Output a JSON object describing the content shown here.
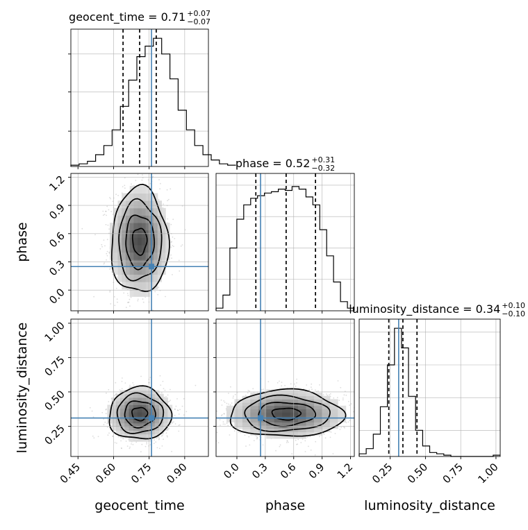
{
  "chart_data": {
    "type": "corner",
    "parameters": [
      "geocent_time",
      "phase",
      "luminosity_distance"
    ],
    "truths": {
      "geocent_time": 0.76,
      "phase": 0.25,
      "luminosity_distance": 0.31
    },
    "titles": [
      {
        "param": "geocent_time",
        "text": "geocent_time = 0.71",
        "sup": "+0.07",
        "sub": "−0.07",
        "median": 0.71,
        "q16": 0.64,
        "q84": 0.78
      },
      {
        "param": "phase",
        "text": "phase = 0.52",
        "sup": "+0.31",
        "sub": "−0.32",
        "median": 0.52,
        "q16": 0.2,
        "q84": 0.83
      },
      {
        "param": "luminosity_distance",
        "text": "luminosity_distance = 0.34",
        "sup": "+0.10",
        "sub": "−0.10",
        "median": 0.34,
        "q16": 0.24,
        "q84": 0.44
      }
    ],
    "axis_labels": {
      "geocent_time": "geocent_time",
      "phase": "phase",
      "luminosity_distance": "luminosity_distance"
    },
    "ranges": {
      "geocent_time": [
        0.42,
        1.0
      ],
      "phase": [
        -0.22,
        1.24
      ],
      "luminosity_distance": [
        0.03,
        1.03
      ]
    },
    "ticks": {
      "geocent_time": [
        "0.45",
        "0.60",
        "0.75",
        "0.90"
      ],
      "phase_x": [
        "0.0",
        "0.3",
        "0.6",
        "0.9",
        "1.2"
      ],
      "phase_y": [
        "0.0",
        "0.3",
        "0.6",
        "0.9",
        "1.2"
      ],
      "luminosity_distance_x": [
        "0.25",
        "0.50",
        "0.75",
        "1.00"
      ],
      "luminosity_distance_y": [
        "0.25",
        "0.50",
        "0.75",
        "1.00"
      ]
    },
    "histograms": {
      "geocent_time": {
        "bin_width": 0.0348,
        "start": 0.42,
        "counts": [
          0.01,
          0.02,
          0.04,
          0.09,
          0.16,
          0.28,
          0.46,
          0.66,
          0.84,
          0.92,
          0.98,
          0.86,
          0.67,
          0.43,
          0.28,
          0.16,
          0.09,
          0.05,
          0.02,
          0.01
        ]
      },
      "phase": {
        "bin_width": 0.073,
        "start": -0.22,
        "counts": [
          0.02,
          0.12,
          0.48,
          0.7,
          0.81,
          0.86,
          0.88,
          0.9,
          0.91,
          0.93,
          0.92,
          0.95,
          0.93,
          0.87,
          0.81,
          0.62,
          0.42,
          0.22,
          0.07,
          0.02
        ]
      },
      "luminosity_distance": {
        "bin_width": 0.05,
        "start": 0.03,
        "counts": [
          0.02,
          0.06,
          0.17,
          0.38,
          0.7,
          0.98,
          0.83,
          0.46,
          0.2,
          0.08,
          0.03,
          0.02,
          0.01,
          0.0,
          0.0,
          0.0,
          0.0,
          0.0,
          0.0,
          0.01
        ]
      }
    },
    "grid": true
  }
}
